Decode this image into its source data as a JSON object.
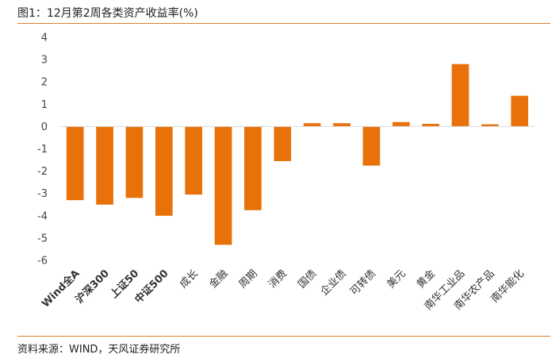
{
  "figure": {
    "title": "图1：12月第2周各类资产收益率(%)",
    "source": "资料来源：WIND，天风证券研究所"
  },
  "colors": {
    "bar": "#e8710a",
    "rule": "#d9822b",
    "axis": "#d9d9d9"
  },
  "chart_data": {
    "type": "bar",
    "title": "",
    "xlabel": "",
    "ylabel": "",
    "ylim": [
      -6,
      4
    ],
    "yticks": [
      4,
      3,
      2,
      1,
      0,
      -1,
      -2,
      -3,
      -4,
      -5,
      -6
    ],
    "grid": false,
    "legend": "none",
    "categories": [
      "Wind全A",
      "沪深300",
      "上证50",
      "中证500",
      "成长",
      "金融",
      "周期",
      "消费",
      "国债",
      "企业债",
      "可转债",
      "美元",
      "黄金",
      "南华工业品",
      "南华农产品",
      "南华能化"
    ],
    "values": [
      -3.3,
      -3.5,
      -3.2,
      -4.0,
      -3.05,
      -5.3,
      -3.75,
      -1.55,
      0.15,
      0.15,
      -1.75,
      0.2,
      0.12,
      2.8,
      0.1,
      1.38
    ],
    "series": [
      {
        "values": [
          -3.3,
          -3.5,
          -3.2,
          -4.0,
          -3.05,
          -5.3,
          -3.75,
          -1.55,
          0.15,
          0.15,
          -1.75,
          0.2,
          0.12,
          2.8,
          0.1,
          1.38
        ]
      }
    ]
  }
}
